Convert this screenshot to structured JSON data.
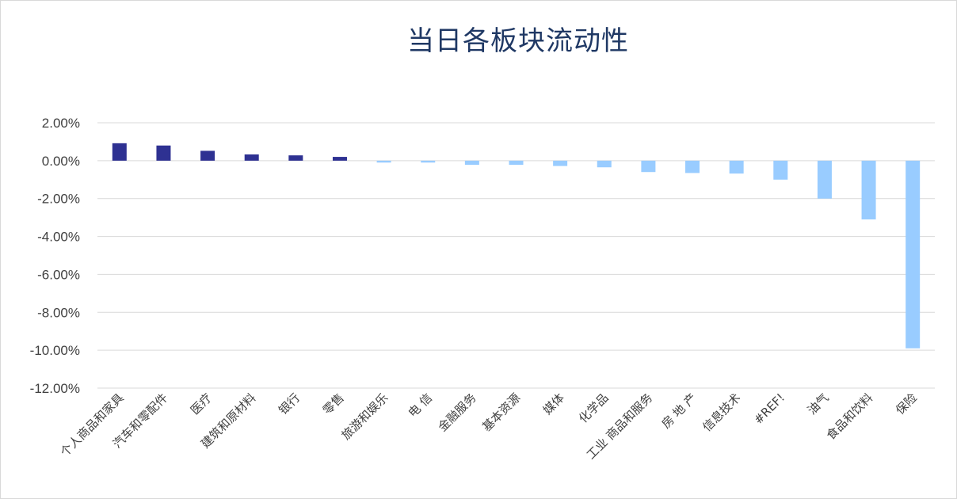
{
  "chart_data": {
    "type": "bar",
    "title": "当日各板块流动性",
    "xlabel": "",
    "ylabel": "",
    "ylim": [
      -12,
      2
    ],
    "y_ticks": [
      "2.00%",
      "0.00%",
      "-2.00%",
      "-4.00%",
      "-6.00%",
      "-8.00%",
      "-10.00%",
      "-12.00%"
    ],
    "y_tick_values": [
      2,
      0,
      -2,
      -4,
      -6,
      -8,
      -10,
      -12
    ],
    "grid": true,
    "legend": "none",
    "categories": [
      "个人商品和家具",
      "汽车和零配件",
      "医疗",
      "建筑和原材料",
      "银行",
      "零售",
      "旅游和娱乐",
      "电 信",
      "金融服务",
      "基本资源",
      "媒体",
      "化学品",
      "工业 商品和服务",
      "房 地 产",
      "信息技术",
      "#REF!",
      "油气",
      "食品和饮料",
      "保险"
    ],
    "values": [
      0.92,
      0.8,
      0.52,
      0.33,
      0.28,
      0.2,
      -0.1,
      -0.1,
      -0.22,
      -0.22,
      -0.28,
      -0.35,
      -0.6,
      -0.65,
      -0.68,
      -1.0,
      -2.0,
      -3.1,
      -9.9
    ],
    "colors": {
      "positive": "#2e3192",
      "negative": "#99ccff"
    }
  }
}
